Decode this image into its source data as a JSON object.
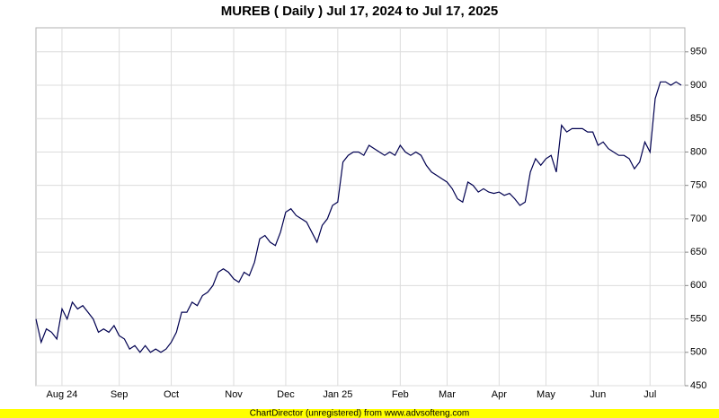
{
  "chart_data": {
    "type": "line",
    "title": "MUREB ( Daily ) Jul 17, 2024 to Jul 17, 2025",
    "footer": "ChartDirector (unregistered) from www.advsofteng.com",
    "categories": [
      null,
      null,
      null,
      null,
      null,
      "Aug 24",
      null,
      null,
      null,
      null,
      null,
      null,
      null,
      null,
      null,
      null,
      "Sep",
      null,
      null,
      null,
      null,
      null,
      null,
      null,
      null,
      null,
      "Oct",
      null,
      null,
      null,
      null,
      null,
      null,
      null,
      null,
      null,
      null,
      null,
      "Nov",
      null,
      null,
      null,
      null,
      null,
      null,
      null,
      null,
      null,
      "Dec",
      null,
      null,
      null,
      null,
      null,
      null,
      null,
      null,
      null,
      "Jan 25",
      null,
      null,
      null,
      null,
      null,
      null,
      null,
      null,
      null,
      null,
      null,
      "Feb",
      null,
      null,
      null,
      null,
      null,
      null,
      null,
      null,
      "Mar",
      null,
      null,
      null,
      null,
      null,
      null,
      null,
      null,
      null,
      "Apr",
      null,
      null,
      null,
      null,
      null,
      null,
      null,
      null,
      "May",
      null,
      null,
      null,
      null,
      null,
      null,
      null,
      null,
      null,
      "Jun",
      null,
      null,
      null,
      null,
      null,
      null,
      null,
      null,
      null,
      "Jul",
      null,
      null,
      null,
      null,
      null,
      null
    ],
    "series": [
      {
        "name": "MUREB",
        "color": "#000050",
        "values": [
          550,
          515,
          535,
          530,
          520,
          565,
          550,
          575,
          565,
          570,
          560,
          550,
          530,
          535,
          530,
          540,
          525,
          520,
          505,
          510,
          500,
          510,
          500,
          505,
          500,
          505,
          515,
          530,
          560,
          560,
          575,
          570,
          585,
          590,
          600,
          620,
          625,
          620,
          610,
          605,
          620,
          615,
          635,
          670,
          675,
          665,
          660,
          680,
          710,
          715,
          705,
          700,
          695,
          680,
          665,
          690,
          700,
          720,
          725,
          785,
          795,
          800,
          800,
          795,
          810,
          805,
          800,
          795,
          800,
          795,
          810,
          800,
          795,
          800,
          795,
          780,
          770,
          765,
          760,
          755,
          745,
          730,
          725,
          755,
          750,
          740,
          745,
          740,
          738,
          740,
          735,
          738,
          730,
          720,
          725,
          770,
          790,
          780,
          790,
          795,
          770,
          840,
          830,
          835,
          835,
          835,
          830,
          830,
          810,
          815,
          805,
          800,
          795,
          795,
          790,
          775,
          785,
          815,
          800,
          880,
          905,
          905,
          900,
          905,
          900
        ]
      }
    ],
    "ylim": [
      450,
      986
    ],
    "yticks": [
      450,
      500,
      550,
      600,
      650,
      700,
      750,
      800,
      850,
      900,
      950
    ],
    "grid": true
  }
}
